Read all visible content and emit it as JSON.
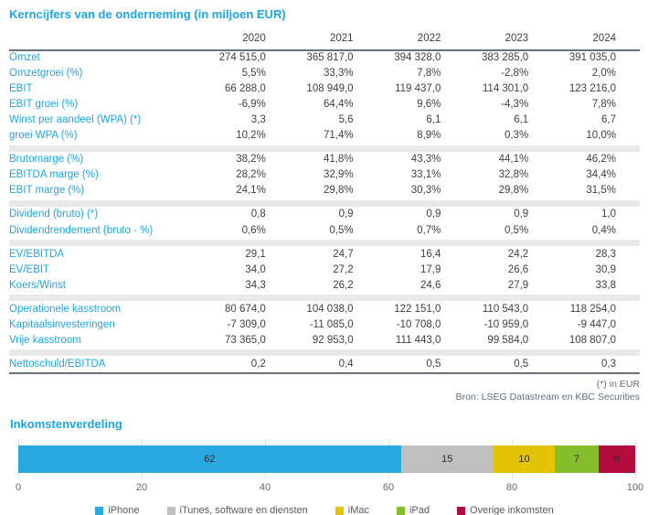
{
  "table": {
    "title": "Kerncijfers van de onderneming (in miljoen EUR)",
    "years": [
      "2020",
      "2021",
      "2022",
      "2023",
      "2024"
    ],
    "sections": [
      {
        "rows": [
          {
            "label": "Omzet",
            "values": [
              "274 515,0",
              "365 817,0",
              "394 328,0",
              "383 285,0",
              "391 035,0"
            ]
          },
          {
            "label": "Omzetgroei (%)",
            "values": [
              "5,5%",
              "33,3%",
              "7,8%",
              "-2,8%",
              "2,0%"
            ]
          },
          {
            "label": "EBIT",
            "values": [
              "66 288,0",
              "108 949,0",
              "119 437,0",
              "114 301,0",
              "123 216,0"
            ]
          },
          {
            "label": "EBIT groei (%)",
            "values": [
              "-6,9%",
              "64,4%",
              "9,6%",
              "-4,3%",
              "7,8%"
            ]
          },
          {
            "label": "Winst per aandeel (WPA) (*)",
            "values": [
              "3,3",
              "5,6",
              "6,1",
              "6,1",
              "6,7"
            ]
          },
          {
            "label": "groei WPA (%)",
            "values": [
              "10,2%",
              "71,4%",
              "8,9%",
              "0,3%",
              "10,0%"
            ]
          }
        ]
      },
      {
        "rows": [
          {
            "label": "Brutomarge (%)",
            "values": [
              "38,2%",
              "41,8%",
              "43,3%",
              "44,1%",
              "46,2%"
            ]
          },
          {
            "label": "EBITDA marge (%)",
            "values": [
              "28,2%",
              "32,9%",
              "33,1%",
              "32,8%",
              "34,4%"
            ]
          },
          {
            "label": "EBIT marge (%)",
            "values": [
              "24,1%",
              "29,8%",
              "30,3%",
              "29,8%",
              "31,5%"
            ]
          }
        ]
      },
      {
        "rows": [
          {
            "label": "Dividend (bruto) (*)",
            "values": [
              "0,8",
              "0,9",
              "0,9",
              "0,9",
              "1,0"
            ]
          },
          {
            "label": "Dividendrendement (bruto - %)",
            "values": [
              "0,6%",
              "0,5%",
              "0,7%",
              "0,5%",
              "0,4%"
            ]
          }
        ]
      },
      {
        "rows": [
          {
            "label": "EV/EBITDA",
            "values": [
              "29,1",
              "24,7",
              "16,4",
              "24,2",
              "28,3"
            ]
          },
          {
            "label": "EV/EBIT",
            "values": [
              "34,0",
              "27,2",
              "17,9",
              "26,6",
              "30,9"
            ]
          },
          {
            "label": "Koers/Winst",
            "values": [
              "34,3",
              "26,2",
              "24,6",
              "27,9",
              "33,8"
            ]
          }
        ]
      },
      {
        "rows": [
          {
            "label": "Operationele kasstroom",
            "values": [
              "80 674,0",
              "104 038,0",
              "122 151,0",
              "110 543,0",
              "118 254,0"
            ]
          },
          {
            "label": "Kapitaalsinvesteringen",
            "values": [
              "-7 309,0",
              "-11 085,0",
              "-10 708,0",
              "-10 959,0",
              "-9 447,0"
            ]
          },
          {
            "label": "Vrije kasstroom",
            "values": [
              "73 365,0",
              "92 953,0",
              "111 443,0",
              "99 584,0",
              "108 807,0"
            ]
          }
        ]
      },
      {
        "rows": [
          {
            "label": "Nettoschuld/EBITDA",
            "values": [
              "0,2",
              "0,4",
              "0,5",
              "0,5",
              "0,3"
            ]
          }
        ]
      }
    ],
    "footnotes": [
      "(*) in EUR",
      "Bron: LSEG Datastream en KBC Securities"
    ]
  },
  "chart_data": {
    "type": "bar",
    "orientation": "horizontal",
    "stacked": true,
    "title": "Inkomstenverdeling",
    "categories": [
      "iPhone",
      "iTunes, software en diensten",
      "iMac",
      "iPad",
      "Overige inkomsten"
    ],
    "values": [
      62,
      15,
      10,
      7,
      6
    ],
    "colors": [
      "#2AA8E0",
      "#BFBFBF",
      "#E2C306",
      "#86BD2C",
      "#B30C3E"
    ],
    "xlim": [
      0,
      100
    ],
    "x_ticks": [
      0,
      20,
      40,
      60,
      80,
      100
    ],
    "grid": true,
    "legend_position": "bottom"
  },
  "colors": {
    "accent": "#1CA6E1",
    "text-dark": "#3F3F3F",
    "border-dark": "#66717B",
    "section-band": "#E9E9E9",
    "footnote": "#5D6F80",
    "gridline": "#E3E3E3",
    "axis-text": "#666666",
    "legend-text": "#595959"
  }
}
